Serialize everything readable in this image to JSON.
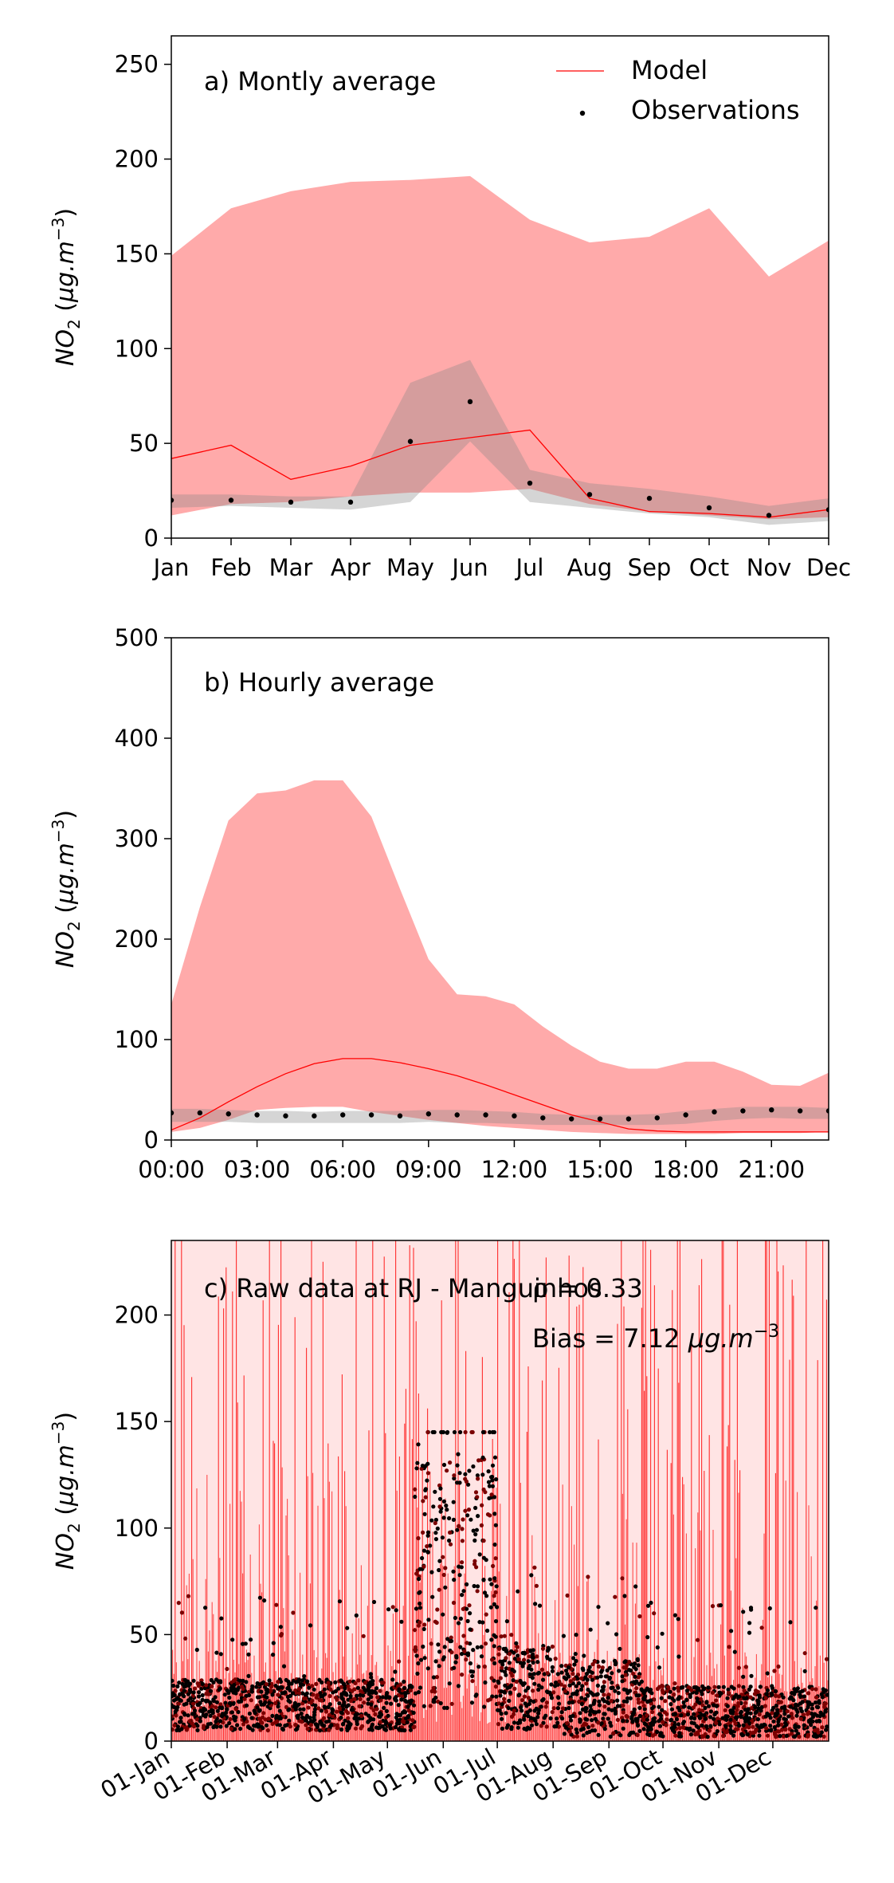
{
  "chart_data": [
    {
      "type": "line",
      "panel_label": "a) Montly average",
      "ylabel": "NO2 (µg.m-3)",
      "xlabel": "",
      "categories": [
        "Jan",
        "Feb",
        "Mar",
        "Apr",
        "May",
        "Jun",
        "Jul",
        "Aug",
        "Sep",
        "Oct",
        "Nov",
        "Dec"
      ],
      "ylim": [
        0,
        265
      ],
      "yticks": [
        0,
        50,
        100,
        150,
        200,
        250
      ],
      "legend": [
        "Model",
        "Observations"
      ],
      "legend_position": "top-right",
      "series": [
        {
          "name": "Model",
          "values": [
            42,
            49,
            31,
            38,
            49,
            53,
            57,
            21,
            14,
            13,
            11,
            15
          ]
        },
        {
          "name": "Observations",
          "values": [
            20,
            20,
            19,
            19,
            51,
            72,
            29,
            23,
            21,
            16,
            12,
            15
          ]
        }
      ],
      "model_band": {
        "upper": [
          149,
          174,
          183,
          188,
          189,
          191,
          168,
          156,
          159,
          174,
          138,
          157
        ],
        "lower": [
          12,
          18,
          19,
          22,
          24,
          24,
          26,
          18,
          14,
          12,
          10,
          11
        ]
      },
      "obs_band": {
        "upper": [
          23,
          23,
          22,
          22,
          82,
          94,
          36,
          29,
          26,
          22,
          17,
          21
        ],
        "lower": [
          16,
          17,
          16,
          15,
          19,
          51,
          19,
          16,
          13,
          11,
          7,
          9
        ]
      }
    },
    {
      "type": "line",
      "panel_label": "b) Hourly average",
      "ylabel": "NO2 (µg.m-3)",
      "xlabel": "",
      "x_range": [
        0,
        23
      ],
      "xtick_values": [
        0,
        3,
        6,
        9,
        12,
        15,
        18,
        21
      ],
      "xtick_labels": [
        "00:00",
        "03:00",
        "06:00",
        "09:00",
        "12:00",
        "15:00",
        "18:00",
        "21:00"
      ],
      "ylim": [
        0,
        500
      ],
      "yticks": [
        0,
        100,
        200,
        300,
        400,
        500
      ],
      "series": [
        {
          "name": "Model",
          "values": [
            10,
            22,
            38,
            53,
            66,
            76,
            81,
            81,
            77,
            71,
            64,
            55,
            45,
            35,
            25,
            18,
            11,
            9,
            8,
            8,
            8,
            8,
            8,
            8
          ]
        },
        {
          "name": "Observations",
          "values": [
            27,
            27,
            26,
            25,
            24,
            24,
            25,
            25,
            24,
            26,
            25,
            25,
            24,
            22,
            21,
            21,
            21,
            22,
            25,
            28,
            29,
            30,
            29,
            29
          ]
        }
      ],
      "model_band": {
        "upper": [
          135,
          232,
          318,
          345,
          348,
          358,
          358,
          322,
          250,
          180,
          145,
          143,
          135,
          113,
          94,
          78,
          71,
          71,
          78,
          78,
          68,
          55,
          54,
          67
        ],
        "lower": [
          8,
          12,
          20,
          30,
          32,
          33,
          33,
          28,
          24,
          20,
          17,
          14,
          12,
          10,
          8,
          7,
          6,
          6,
          6,
          6,
          7,
          7,
          7,
          8
        ]
      },
      "obs_band": {
        "upper": [
          31,
          31,
          30,
          29,
          29,
          28,
          29,
          29,
          29,
          30,
          30,
          29,
          28,
          26,
          25,
          25,
          25,
          26,
          29,
          31,
          33,
          33,
          33,
          32
        ],
        "lower": [
          18,
          18,
          18,
          17,
          17,
          17,
          17,
          17,
          17,
          18,
          17,
          17,
          16,
          15,
          15,
          15,
          15,
          15,
          16,
          19,
          21,
          22,
          21,
          21
        ]
      }
    },
    {
      "type": "line",
      "panel_label": "c) Raw data at RJ - Manguinhos",
      "ylabel": "NO2 (µg.m-3)",
      "xlabel": "",
      "annotations": [
        "ρ = 0.33",
        "Bias = 7.12 µg.m-3"
      ],
      "ylim": [
        0,
        235
      ],
      "yticks": [
        0,
        50,
        100,
        150,
        200
      ],
      "xtick_labels": [
        "01-Jan",
        "01-Feb",
        "01-Mar",
        "01-Apr",
        "01-May",
        "01-Jun",
        "01-Jul",
        "01-Aug",
        "01-Sep",
        "01-Oct",
        "01-Nov",
        "01-Dec"
      ],
      "xtick_day_of_year": [
        0,
        31,
        59,
        90,
        120,
        151,
        181,
        212,
        243,
        273,
        304,
        334
      ],
      "x_range_days": [
        0,
        365
      ],
      "series_description": [
        "Model",
        "Observations"
      ],
      "observation_levels": [
        {
          "start_day": 0,
          "end_day": 135,
          "base": 17,
          "spread": 12
        },
        {
          "start_day": 135,
          "end_day": 181,
          "base": 75,
          "spread": 60
        },
        {
          "start_day": 181,
          "end_day": 212,
          "base": 25,
          "spread": 20
        },
        {
          "start_day": 212,
          "end_day": 260,
          "base": 20,
          "spread": 18
        },
        {
          "start_day": 260,
          "end_day": 365,
          "base": 14,
          "spread": 12
        }
      ]
    }
  ]
}
